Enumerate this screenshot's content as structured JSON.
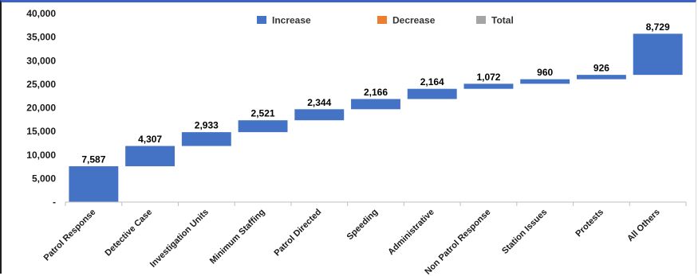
{
  "chart_data": {
    "type": "waterfall",
    "title": "",
    "xlabel": "",
    "ylabel": "",
    "ylim": [
      0,
      40000
    ],
    "y_ticks": [
      "-",
      "5,000",
      "10,000",
      "15,000",
      "20,000",
      "25,000",
      "30,000",
      "35,000",
      "40,000"
    ],
    "grid": false,
    "legend": {
      "position": "top-center",
      "entries": [
        {
          "name": "Increase",
          "color": "#4472c4"
        },
        {
          "name": "Decrease",
          "color": "#ed7d31"
        },
        {
          "name": "Total",
          "color": "#a5a5a5"
        }
      ]
    },
    "categories": [
      "Patrol Response",
      "Detective Case",
      "Investigation Units",
      "Minimum Staffing",
      "Patrol Directed",
      "Speeding",
      "Administrative",
      "Non Patrol Response",
      "Station Issues",
      "Protests",
      "All Others"
    ],
    "values": [
      7587,
      4307,
      2933,
      2521,
      2344,
      2166,
      2164,
      1072,
      960,
      926,
      8729
    ],
    "value_labels": [
      "7,587",
      "4,307",
      "2,933",
      "2,521",
      "2,344",
      "2,166",
      "2,164",
      "1,072",
      "960",
      "926",
      "8,729"
    ],
    "series": [
      {
        "name": "Increase",
        "values": [
          7587,
          4307,
          2933,
          2521,
          2344,
          2166,
          2164,
          1072,
          960,
          926,
          8729
        ]
      }
    ],
    "colors": {
      "increase": "#4472c4",
      "axis": "#bfbfbf",
      "text": "#1a1a1a"
    }
  }
}
